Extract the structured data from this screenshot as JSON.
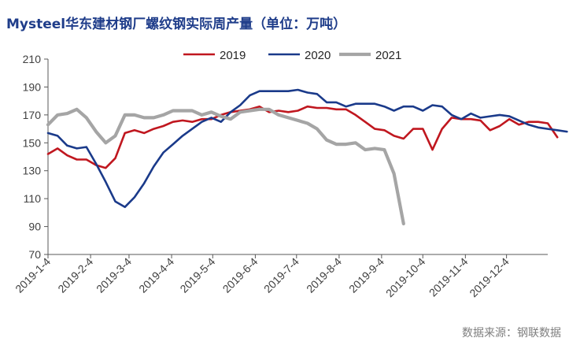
{
  "chart_data": {
    "type": "line",
    "title": "Mysteel华东建材钢厂螺纹钢实际周产量（单位：万吨）",
    "source": "数据来源：钢联数据",
    "ylim": [
      70,
      210
    ],
    "y_ticks": [
      "70",
      "90",
      "110",
      "130",
      "150",
      "170",
      "190",
      "210"
    ],
    "x_tick_labels": [
      "2019-1-4",
      "2019-2-4",
      "2019-3-4",
      "2019-4-4",
      "2019-5-4",
      "2019-6-4",
      "2019-7-4",
      "2019-8-4",
      "2019-9-4",
      "2019-10-4",
      "2019-11-4",
      "2019-12-4"
    ],
    "legend_position": "top",
    "grid": false,
    "series": [
      {
        "name": "2019",
        "color": "#c0171f",
        "values": [
          142,
          146,
          141,
          138,
          138,
          134,
          132,
          139,
          157,
          159,
          157,
          160,
          162,
          165,
          166,
          165,
          167,
          167,
          170,
          172,
          173,
          174,
          176,
          172,
          173,
          172,
          173,
          176,
          175,
          175,
          174,
          174,
          170,
          165,
          160,
          159,
          155,
          153,
          160,
          160,
          145,
          160,
          168,
          167,
          167,
          166,
          159,
          162,
          167,
          163,
          165,
          165,
          164,
          154
        ]
      },
      {
        "name": "2020",
        "color": "#1a3a8a",
        "values": [
          157,
          155,
          148,
          146,
          147,
          135,
          122,
          108,
          104,
          111,
          121,
          133,
          143,
          149,
          155,
          160,
          165,
          168,
          165,
          172,
          177,
          184,
          187,
          187,
          187,
          187,
          188,
          186,
          185,
          179,
          179,
          176,
          178,
          178,
          178,
          176,
          173,
          176,
          176,
          173,
          177,
          176,
          170,
          167,
          171,
          168,
          169,
          170,
          169,
          166,
          163,
          161,
          160,
          159,
          158
        ]
      },
      {
        "name": "2021",
        "color": "#a5a5a5",
        "values": [
          163,
          170,
          171,
          174,
          168,
          158,
          150,
          155,
          170,
          170,
          168,
          168,
          170,
          173,
          173,
          173,
          170,
          172,
          169,
          167,
          172,
          173,
          174,
          174,
          170,
          168,
          166,
          164,
          160,
          152,
          149,
          149,
          150,
          145,
          146,
          145,
          128,
          92
        ]
      }
    ]
  }
}
